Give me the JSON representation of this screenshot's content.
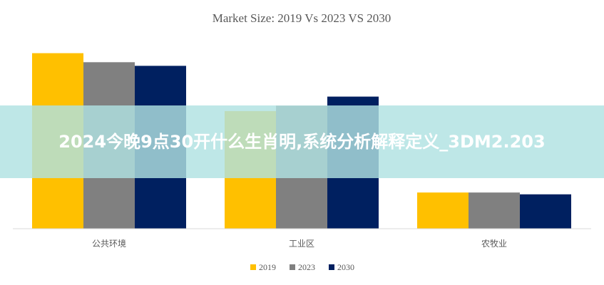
{
  "chart_data": {
    "type": "bar",
    "title": "Market Size: 2019 Vs 2023 VS 2030",
    "categories": [
      "公共环境",
      "工业区",
      "农牧业"
    ],
    "series": [
      {
        "name": "2019",
        "values": [
          97,
          65,
          20
        ]
      },
      {
        "name": "2023",
        "values": [
          92,
          68,
          20
        ]
      },
      {
        "name": "2030",
        "values": [
          90,
          73,
          19
        ]
      }
    ],
    "ylim": [
      0,
      100
    ],
    "grid": false,
    "legend": "bottom",
    "colors": {
      "2019": "#FFC000",
      "2023": "#808080",
      "2030": "#002060",
      "axis": "#D9D9D9",
      "text": "#595959"
    }
  },
  "banner": {
    "text": "2024今晚9点30开什么生肖明,系统分析解释定义_3DM2.203",
    "bg": "#B0E2E2"
  }
}
